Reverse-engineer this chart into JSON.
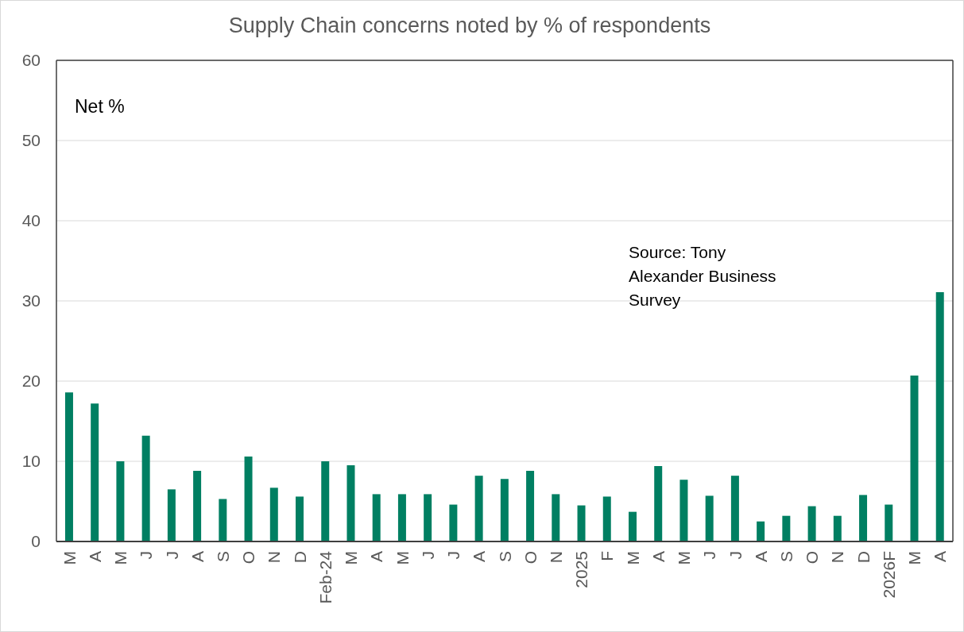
{
  "chart_data": {
    "type": "bar",
    "title": "Supply Chain concerns noted by % of respondents",
    "categories": [
      "M",
      "A",
      "M",
      "J",
      "J",
      "A",
      "S",
      "O",
      "N",
      "D",
      "Feb-24",
      "M",
      "A",
      "M",
      "J",
      "J",
      "A",
      "S",
      "O",
      "N",
      "2025",
      "F",
      "M",
      "A",
      "M",
      "J",
      "J",
      "A",
      "S",
      "O",
      "N",
      "D",
      "2026F",
      "M",
      "A"
    ],
    "values": [
      18.6,
      17.2,
      10.0,
      13.2,
      6.5,
      8.8,
      5.3,
      10.6,
      6.7,
      5.6,
      10.0,
      9.5,
      5.9,
      5.9,
      5.9,
      4.6,
      8.2,
      7.8,
      8.8,
      5.9,
      4.5,
      5.6,
      3.7,
      9.4,
      7.7,
      5.7,
      8.2,
      2.5,
      3.2,
      4.4,
      3.2,
      5.8,
      4.6,
      20.7,
      31.1
    ],
    "color": "#007f62",
    "ylim": [
      0,
      60
    ],
    "yticks": [
      0,
      10,
      20,
      30,
      40,
      50,
      60
    ],
    "grid": "y",
    "annotations": [
      "Net %",
      "Source: Tony Alexander Business Survey"
    ]
  }
}
